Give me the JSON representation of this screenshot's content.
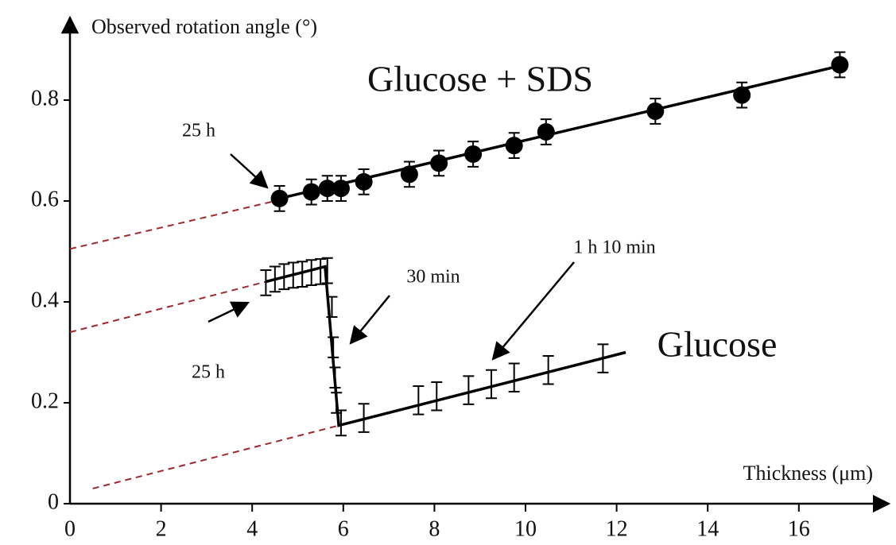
{
  "chart_data": {
    "type": "scatter",
    "x_label": "Thickness (μm)",
    "y_label": "Observed rotation angle (°)",
    "xlim": [
      0,
      18
    ],
    "ylim": [
      0,
      0.96
    ],
    "xticks": [
      0,
      2,
      4,
      6,
      8,
      10,
      12,
      14,
      16
    ],
    "yticks": [
      0,
      0.2,
      0.4,
      0.6,
      0.8
    ],
    "series": [
      {
        "name": "Glucose + SDS",
        "color": "#000000",
        "marker": "circle",
        "x": [
          4.6,
          5.3,
          5.65,
          5.95,
          6.45,
          7.45,
          8.1,
          8.85,
          9.75,
          10.45,
          12.85,
          14.75,
          16.9
        ],
        "values": [
          0.605,
          0.618,
          0.625,
          0.625,
          0.638,
          0.653,
          0.675,
          0.693,
          0.71,
          0.737,
          0.778,
          0.81,
          0.87
        ],
        "errors": [
          0.025,
          0.025,
          0.025,
          0.025,
          0.025,
          0.025,
          0.025,
          0.025,
          0.025,
          0.025,
          0.025,
          0.025,
          0.025
        ]
      },
      {
        "name": "Glucose",
        "color": "#000000",
        "marker": "none",
        "x": [
          4.3,
          4.5,
          4.7,
          4.9,
          5.1,
          5.3,
          5.5,
          5.65,
          5.75,
          5.78,
          5.82,
          5.85,
          5.95,
          6.45,
          7.65,
          8.05,
          8.75,
          9.25,
          9.75,
          10.5,
          11.7
        ],
        "values": [
          0.438,
          0.445,
          0.45,
          0.453,
          0.455,
          0.458,
          0.46,
          0.462,
          0.39,
          0.31,
          0.25,
          0.2,
          0.16,
          0.17,
          0.205,
          0.213,
          0.225,
          0.237,
          0.25,
          0.265,
          0.288
        ],
        "errors": [
          0.025,
          0.025,
          0.025,
          0.025,
          0.025,
          0.025,
          0.025,
          0.025,
          0.02,
          0.02,
          0.02,
          0.02,
          0.025,
          0.028,
          0.028,
          0.028,
          0.028,
          0.028,
          0.028,
          0.028,
          0.028
        ]
      }
    ],
    "fit_lines": [
      {
        "style": "solid",
        "color": "#000000",
        "x": [
          4.6,
          17.0
        ],
        "y": [
          0.605,
          0.87
        ]
      },
      {
        "style": "dashed",
        "color": "#a0282d",
        "x": [
          0,
          4.5
        ],
        "y": [
          0.505,
          0.6
        ]
      },
      {
        "style": "solid",
        "color": "#000000",
        "x": [
          4.3,
          5.6,
          5.9,
          12.2
        ],
        "y": [
          0.44,
          0.47,
          0.155,
          0.3
        ]
      },
      {
        "style": "dashed",
        "color": "#a0282d",
        "x": [
          0,
          4.3
        ],
        "y": [
          0.34,
          0.44
        ]
      },
      {
        "style": "dashed",
        "color": "#a0282d",
        "x": [
          0.5,
          5.9
        ],
        "y": [
          0.03,
          0.155
        ]
      }
    ],
    "annotations": [
      "25 h",
      "25 h",
      "30 min",
      "1 h 10 min"
    ]
  }
}
